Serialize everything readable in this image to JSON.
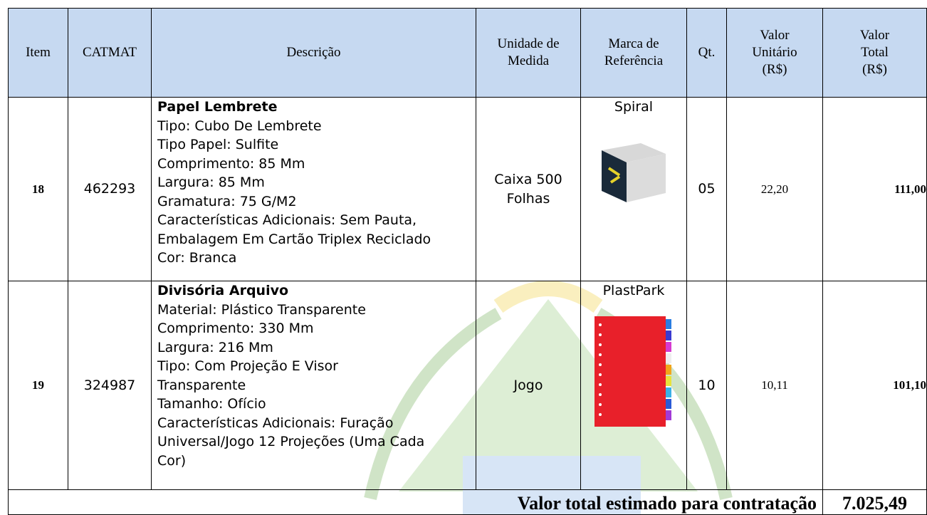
{
  "table": {
    "header": [
      [
        "Item"
      ],
      [
        "CATMAT"
      ],
      [
        "Descrição"
      ],
      [
        "Unidade de",
        "Medida"
      ],
      [
        "Marca de",
        "Referência"
      ],
      [
        "Qt."
      ],
      [
        "Valor",
        "Unitário",
        "(R$)"
      ],
      [
        "Valor",
        "Total",
        "(R$)"
      ]
    ],
    "rows": [
      {
        "item": "18",
        "catmat": "462293",
        "title": "Papel Lembrete",
        "lines": [
          "Tipo: Cubo De Lembrete",
          "Tipo Papel: Sulfite",
          "Comprimento: 85 Mm",
          "Largura: 85 Mm",
          "Gramatura: 75 G/M2",
          "Características Adicionais: Sem Pauta,",
          "Embalagem Em Cartão Triplex Reciclado",
          "Cor: Branca"
        ],
        "unit": [
          "Caixa 500",
          "Folhas"
        ],
        "brand": "Spiral",
        "qty": "05",
        "unit_price": "22,20",
        "total": "111,00"
      },
      {
        "item": "19",
        "catmat": "324987",
        "title": "Divisória Arquivo",
        "lines": [
          "Material: Plástico Transparente",
          "Comprimento: 330 Mm",
          "Largura: 216 Mm",
          "Tipo: Com Projeção E Visor",
          "Transparente",
          "Tamanho: Ofício",
          "Características Adicionais: Furação",
          "Universal/Jogo 12 Projeções (Uma Cada",
          "Cor)"
        ],
        "unit": [
          "Jogo"
        ],
        "brand": "PlastPark",
        "qty": "10",
        "unit_price": "10,11",
        "total": "101,10"
      }
    ],
    "footer": {
      "label": "Valor total estimado para contratação",
      "value": "7.025,49"
    }
  }
}
